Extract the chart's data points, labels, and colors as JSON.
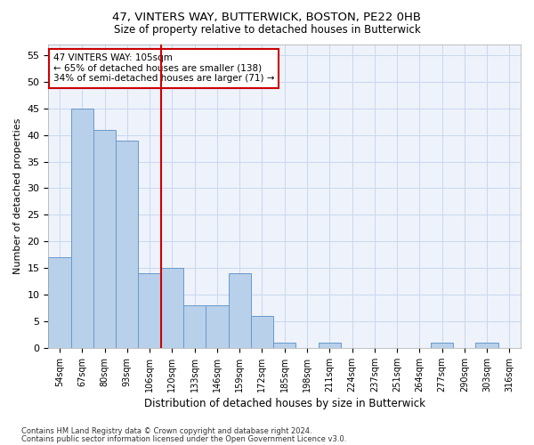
{
  "title1": "47, VINTERS WAY, BUTTERWICK, BOSTON, PE22 0HB",
  "title2": "Size of property relative to detached houses in Butterwick",
  "xlabel": "Distribution of detached houses by size in Butterwick",
  "ylabel": "Number of detached properties",
  "categories": [
    "54sqm",
    "67sqm",
    "80sqm",
    "93sqm",
    "106sqm",
    "120sqm",
    "133sqm",
    "146sqm",
    "159sqm",
    "172sqm",
    "185sqm",
    "198sqm",
    "211sqm",
    "224sqm",
    "237sqm",
    "251sqm",
    "264sqm",
    "277sqm",
    "290sqm",
    "303sqm",
    "316sqm"
  ],
  "values": [
    17,
    45,
    41,
    39,
    14,
    15,
    8,
    8,
    14,
    6,
    1,
    0,
    1,
    0,
    0,
    0,
    0,
    1,
    0,
    1,
    0
  ],
  "bar_color": "#b8d0ea",
  "bar_edge_color": "#6699cc",
  "vline_x": 4.5,
  "vline_color": "#cc0000",
  "annotation_line1": "47 VINTERS WAY: 105sqm",
  "annotation_line2": "← 65% of detached houses are smaller (138)",
  "annotation_line3": "34% of semi-detached houses are larger (71) →",
  "annotation_box_color": "#cc0000",
  "ylim": [
    0,
    57
  ],
  "yticks": [
    0,
    5,
    10,
    15,
    20,
    25,
    30,
    35,
    40,
    45,
    50,
    55
  ],
  "grid_color": "#c8d8ee",
  "background_color": "#eef2fb",
  "footnote1": "Contains HM Land Registry data © Crown copyright and database right 2024.",
  "footnote2": "Contains public sector information licensed under the Open Government Licence v3.0."
}
